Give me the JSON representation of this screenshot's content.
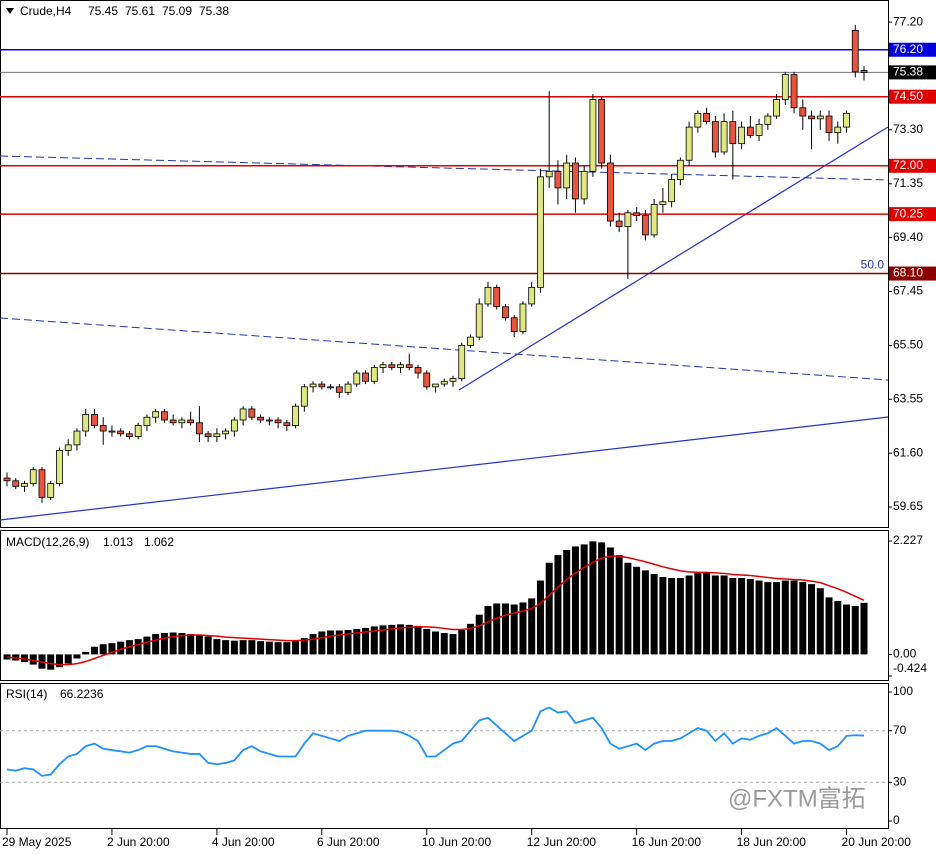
{
  "chart_data": [
    {
      "type": "candlestick",
      "title": "Crude,H4",
      "up_color": "#dfe882",
      "down_color": "#e8553e",
      "ylim": [
        59.0,
        78.0
      ],
      "yticks": [
        {
          "value": 77.2,
          "label": "77.20"
        },
        {
          "value": 73.3,
          "label": "73.30"
        },
        {
          "value": 71.35,
          "label": "71.35"
        },
        {
          "value": 69.4,
          "label": "69.40"
        },
        {
          "value": 67.45,
          "label": "67.45"
        },
        {
          "value": 65.5,
          "label": "65.50"
        },
        {
          "value": 63.55,
          "label": "63.55"
        },
        {
          "value": 61.6,
          "label": "61.60"
        },
        {
          "value": 59.65,
          "label": "59.65"
        }
      ],
      "levels": [
        {
          "value": 76.2,
          "label": "76.20",
          "color": "#0000dd"
        },
        {
          "value": 75.38,
          "label": "75.38",
          "color": "#000000"
        },
        {
          "value": 74.5,
          "label": "74.50",
          "color": "#e00000"
        },
        {
          "value": 72.0,
          "label": "72.00",
          "color": "#e00000"
        },
        {
          "value": 70.25,
          "label": "70.25",
          "color": "#e00000"
        },
        {
          "value": 68.1,
          "label": "68.10",
          "color": "#8b0000",
          "note": "50.0"
        }
      ],
      "categories": [
        "29 May 2025",
        null,
        null,
        null,
        null,
        null,
        null,
        null,
        null,
        null,
        null,
        null,
        "2 Jun 20:00",
        null,
        null,
        null,
        null,
        null,
        null,
        null,
        null,
        null,
        null,
        null,
        "4 Jun 20:00",
        null,
        null,
        null,
        null,
        null,
        null,
        null,
        null,
        null,
        null,
        null,
        "6 Jun 20:00",
        null,
        null,
        null,
        null,
        null,
        null,
        null,
        null,
        null,
        null,
        null,
        "10 Jun 20:00",
        null,
        null,
        null,
        null,
        null,
        null,
        null,
        null,
        null,
        null,
        null,
        "12 Jun 20:00",
        null,
        null,
        null,
        null,
        null,
        null,
        null,
        null,
        null,
        null,
        null,
        "16 Jun 20:00",
        null,
        null,
        null,
        null,
        null,
        null,
        null,
        null,
        null,
        null,
        null,
        "18 Jun 20:00",
        null,
        null,
        null,
        null,
        null,
        null,
        null,
        null,
        null,
        null,
        null,
        "20 Jun 20:00",
        null,
        null
      ],
      "open": [
        60.7,
        60.6,
        60.4,
        60.5,
        61.0,
        60.0,
        60.5,
        61.7,
        61.9,
        62.4,
        63.0,
        62.6,
        62.4,
        62.4,
        62.3,
        62.2,
        62.6,
        62.9,
        63.1,
        62.8,
        62.7,
        62.8,
        62.7,
        62.3,
        62.2,
        62.3,
        62.4,
        62.8,
        63.2,
        62.9,
        62.8,
        62.8,
        62.7,
        62.6,
        63.3,
        64.0,
        64.1,
        64.0,
        64.0,
        63.8,
        64.1,
        64.5,
        64.2,
        64.7,
        64.8,
        64.7,
        64.8,
        64.7,
        64.5,
        64.0,
        64.1,
        64.2,
        64.3,
        65.5,
        65.8,
        67.0,
        67.6,
        66.9,
        66.5,
        66.0,
        67.0,
        67.6,
        71.6,
        71.8,
        71.2,
        72.1,
        70.8,
        71.8,
        74.4,
        72.1,
        70.0,
        69.8,
        70.3,
        70.2,
        69.5,
        70.6,
        70.7,
        71.5,
        72.2,
        73.4,
        73.9,
        73.6,
        72.5,
        73.6,
        72.8,
        73.4,
        73.1,
        73.5,
        73.8,
        74.4,
        75.3,
        74.1,
        73.8,
        73.7,
        73.8,
        73.2,
        73.4,
        76.9,
        75.45
      ],
      "high": [
        60.9,
        60.7,
        60.6,
        61.1,
        61.1,
        60.6,
        61.8,
        62.1,
        62.5,
        63.2,
        63.2,
        62.9,
        62.6,
        62.5,
        62.4,
        62.7,
        63.0,
        63.2,
        63.2,
        63.0,
        62.9,
        63.1,
        63.3,
        62.4,
        62.5,
        62.5,
        62.9,
        63.3,
        63.3,
        63.0,
        62.9,
        62.9,
        62.8,
        63.4,
        64.1,
        64.2,
        64.2,
        64.1,
        64.1,
        64.2,
        64.6,
        64.6,
        64.8,
        64.9,
        64.9,
        64.9,
        65.2,
        64.8,
        64.6,
        64.1,
        64.3,
        64.4,
        65.6,
        65.9,
        67.2,
        67.8,
        67.7,
        67.0,
        66.6,
        67.1,
        67.8,
        71.9,
        74.7,
        72.2,
        72.4,
        72.3,
        72.0,
        74.6,
        74.5,
        72.4,
        70.3,
        70.4,
        70.5,
        70.4,
        70.8,
        71.2,
        71.7,
        72.3,
        73.6,
        74.0,
        74.1,
        73.8,
        73.9,
        74.0,
        73.6,
        73.8,
        73.7,
        73.9,
        74.6,
        75.4,
        75.4,
        74.4,
        74.0,
        74.0,
        74.0,
        73.6,
        74.0,
        77.1,
        75.61
      ],
      "low": [
        60.4,
        60.3,
        60.2,
        60.4,
        59.8,
        59.9,
        60.4,
        61.5,
        61.7,
        62.2,
        62.5,
        61.9,
        62.2,
        62.2,
        62.1,
        62.1,
        62.4,
        62.7,
        62.7,
        62.6,
        62.5,
        62.6,
        62.0,
        62.0,
        62.0,
        62.1,
        62.2,
        62.6,
        62.8,
        62.7,
        62.6,
        62.5,
        62.4,
        62.5,
        63.1,
        63.8,
        63.9,
        63.9,
        63.6,
        63.7,
        64.0,
        64.1,
        64.1,
        64.5,
        64.6,
        64.5,
        64.6,
        64.3,
        63.9,
        63.8,
        64.0,
        64.0,
        64.2,
        65.4,
        65.7,
        66.9,
        66.8,
        66.4,
        65.8,
        65.9,
        66.9,
        67.4,
        71.2,
        70.6,
        70.8,
        70.3,
        70.6,
        71.6,
        71.9,
        69.8,
        69.6,
        67.9,
        70.0,
        69.3,
        69.4,
        70.3,
        70.5,
        71.3,
        72.0,
        73.2,
        73.5,
        72.3,
        72.4,
        71.5,
        72.6,
        73.0,
        72.9,
        73.3,
        73.7,
        74.2,
        73.9,
        73.3,
        72.6,
        73.3,
        72.9,
        72.8,
        73.2,
        75.2,
        75.09
      ],
      "close": [
        60.6,
        60.4,
        60.5,
        61.0,
        60.0,
        60.5,
        61.7,
        61.9,
        62.4,
        63.0,
        62.6,
        62.4,
        62.4,
        62.3,
        62.2,
        62.6,
        62.9,
        63.1,
        62.8,
        62.7,
        62.8,
        62.7,
        62.3,
        62.2,
        62.3,
        62.4,
        62.8,
        63.2,
        62.9,
        62.8,
        62.8,
        62.7,
        62.6,
        63.3,
        64.0,
        64.1,
        64.0,
        64.0,
        63.8,
        64.1,
        64.5,
        64.2,
        64.7,
        64.8,
        64.7,
        64.8,
        64.7,
        64.5,
        64.0,
        64.1,
        64.2,
        64.3,
        65.5,
        65.8,
        67.0,
        67.6,
        66.9,
        66.5,
        66.0,
        67.0,
        67.6,
        71.6,
        71.8,
        71.2,
        72.1,
        70.8,
        71.8,
        74.4,
        72.1,
        70.0,
        69.8,
        70.3,
        70.2,
        69.5,
        70.6,
        70.7,
        71.5,
        72.2,
        73.4,
        73.9,
        73.6,
        72.5,
        73.6,
        72.8,
        73.4,
        73.1,
        73.5,
        73.8,
        74.4,
        75.3,
        74.1,
        73.8,
        73.7,
        73.8,
        73.2,
        73.4,
        73.9,
        75.4,
        75.38
      ]
    },
    {
      "type": "macd",
      "title": "MACD(12,26,9)",
      "ylim": [
        -0.424,
        2.227
      ],
      "yticks": [
        {
          "value": 2.227,
          "label": "2.227"
        },
        {
          "value": 0,
          "label": "0.00"
        },
        -0.424
      ],
      "series": [
        {
          "name": "MACD",
          "color": "#000000",
          "values": [
            -0.1,
            -0.12,
            -0.15,
            -0.2,
            -0.28,
            -0.3,
            -0.25,
            -0.18,
            -0.08,
            0.05,
            0.15,
            0.2,
            0.22,
            0.25,
            0.28,
            0.3,
            0.35,
            0.4,
            0.42,
            0.43,
            0.42,
            0.4,
            0.38,
            0.35,
            0.3,
            0.28,
            0.27,
            0.28,
            0.28,
            0.26,
            0.25,
            0.24,
            0.24,
            0.26,
            0.32,
            0.4,
            0.45,
            0.47,
            0.47,
            0.48,
            0.5,
            0.52,
            0.55,
            0.57,
            0.58,
            0.59,
            0.58,
            0.56,
            0.5,
            0.45,
            0.42,
            0.4,
            0.48,
            0.6,
            0.78,
            0.95,
            1.0,
            1.0,
            0.98,
            1.02,
            1.1,
            1.45,
            1.8,
            1.95,
            2.05,
            2.12,
            2.16,
            2.22,
            2.2,
            2.1,
            1.95,
            1.8,
            1.72,
            1.65,
            1.58,
            1.52,
            1.5,
            1.5,
            1.55,
            1.6,
            1.6,
            1.55,
            1.55,
            1.5,
            1.5,
            1.48,
            1.45,
            1.42,
            1.42,
            1.45,
            1.45,
            1.42,
            1.38,
            1.3,
            1.12,
            1.05,
            0.98,
            0.95,
            1.013
          ]
        },
        {
          "name": "Signal",
          "color": "#e00000",
          "values": [
            -0.05,
            -0.07,
            -0.09,
            -0.12,
            -0.15,
            -0.18,
            -0.2,
            -0.2,
            -0.18,
            -0.14,
            -0.08,
            -0.02,
            0.04,
            0.1,
            0.15,
            0.19,
            0.24,
            0.28,
            0.32,
            0.35,
            0.37,
            0.38,
            0.38,
            0.37,
            0.36,
            0.34,
            0.33,
            0.32,
            0.31,
            0.3,
            0.29,
            0.28,
            0.27,
            0.27,
            0.28,
            0.3,
            0.33,
            0.36,
            0.38,
            0.4,
            0.42,
            0.44,
            0.46,
            0.48,
            0.5,
            0.52,
            0.53,
            0.54,
            0.54,
            0.53,
            0.51,
            0.49,
            0.49,
            0.51,
            0.56,
            0.64,
            0.71,
            0.77,
            0.81,
            0.85,
            0.9,
            1.0,
            1.16,
            1.32,
            1.47,
            1.6,
            1.71,
            1.81,
            1.89,
            1.93,
            1.93,
            1.9,
            1.86,
            1.82,
            1.77,
            1.72,
            1.68,
            1.64,
            1.62,
            1.61,
            1.61,
            1.6,
            1.59,
            1.57,
            1.56,
            1.55,
            1.53,
            1.51,
            1.49,
            1.48,
            1.47,
            1.46,
            1.44,
            1.41,
            1.35,
            1.29,
            1.22,
            1.14,
            1.062
          ]
        }
      ]
    },
    {
      "type": "line",
      "title": "RSI(14)",
      "color": "#1e90ff",
      "ylim": [
        0,
        100
      ],
      "yticks": [
        100,
        70,
        30,
        0
      ],
      "values": [
        40,
        39,
        41,
        40,
        35,
        36,
        44,
        50,
        52,
        58,
        60,
        56,
        55,
        54,
        53,
        55,
        58,
        58,
        56,
        54,
        53,
        52,
        52,
        45,
        44,
        45,
        47,
        55,
        58,
        54,
        52,
        50,
        50,
        50,
        60,
        68,
        66,
        64,
        62,
        66,
        68,
        70,
        70,
        70,
        70,
        69,
        66,
        62,
        50,
        50,
        55,
        60,
        62,
        70,
        78,
        80,
        74,
        68,
        62,
        66,
        70,
        85,
        88,
        84,
        85,
        76,
        78,
        80,
        72,
        60,
        56,
        58,
        60,
        55,
        60,
        62,
        62,
        64,
        68,
        72,
        70,
        62,
        68,
        60,
        64,
        63,
        66,
        68,
        72,
        66,
        60,
        62,
        62,
        60,
        55,
        58,
        66,
        66.5,
        66.2236
      ]
    }
  ],
  "watermark": "@FXTM富拓"
}
